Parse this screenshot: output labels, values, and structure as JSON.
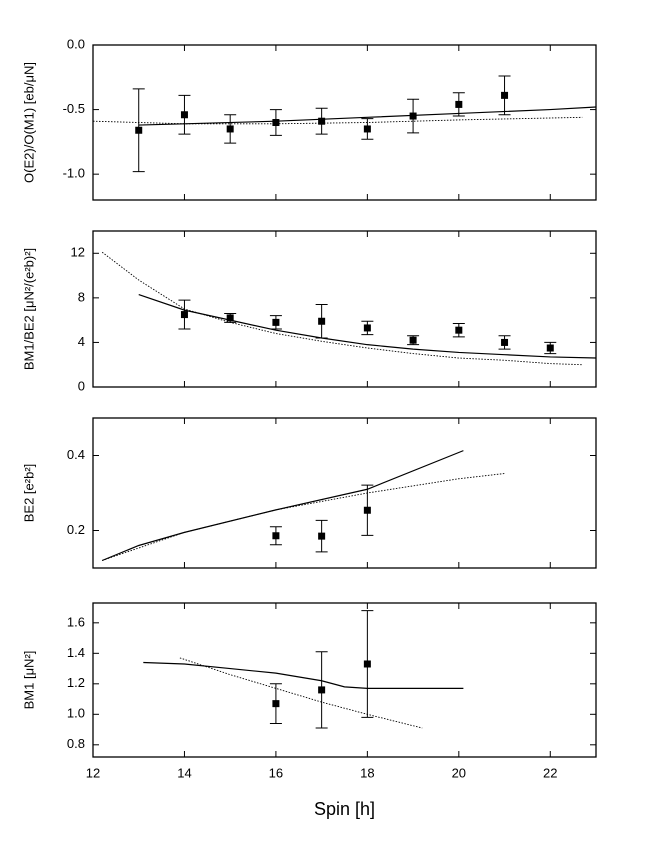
{
  "chart_data": [
    {
      "type": "line",
      "ylabel": "O(E2)/O(M1) [eb/μN]",
      "xlim": [
        12,
        23
      ],
      "xticks": [
        12,
        14,
        16,
        18,
        20,
        22
      ],
      "ylim": [
        -1.2,
        0.0
      ],
      "yticks": [
        {
          "value": 0.0,
          "label": "0.0"
        },
        {
          "value": -0.5,
          "label": "-0.5"
        },
        {
          "value": -1.0,
          "label": "-1.0"
        }
      ],
      "series": [
        {
          "color": "#000000",
          "marker": "square",
          "x": [
            13,
            14,
            15,
            16,
            17,
            18,
            19,
            20,
            21
          ],
          "values": [
            -0.66,
            -0.54,
            -0.65,
            -0.6,
            -0.59,
            -0.65,
            -0.55,
            -0.46,
            -0.39
          ],
          "errors": [
            0.32,
            0.15,
            0.11,
            0.1,
            0.1,
            0.08,
            0.13,
            0.09,
            0.15
          ]
        },
        {
          "color": "#000000",
          "dash": false,
          "x": [
            13,
            14,
            16,
            18,
            20,
            22,
            23
          ],
          "values": [
            -0.62,
            -0.61,
            -0.59,
            -0.56,
            -0.53,
            -0.5,
            -0.48
          ]
        },
        {
          "color": "#000000",
          "dash": true,
          "x": [
            12,
            14,
            16,
            18,
            20,
            22.7
          ],
          "values": [
            -0.59,
            -0.61,
            -0.61,
            -0.6,
            -0.58,
            -0.56
          ]
        }
      ]
    },
    {
      "type": "line",
      "ylabel": "BM1/BE2 [μN²/(e²b)²]",
      "xlim": [
        12,
        23
      ],
      "xticks": [
        12,
        14,
        16,
        18,
        20,
        22
      ],
      "ylim": [
        0,
        14
      ],
      "yticks": [
        0,
        4,
        8,
        12
      ],
      "series": [
        {
          "color": "#000000",
          "marker": "square",
          "x": [
            14,
            15,
            16,
            17,
            18,
            19,
            20,
            21,
            22
          ],
          "values": [
            6.5,
            6.2,
            5.8,
            5.9,
            5.3,
            4.2,
            5.1,
            4.0,
            3.5
          ],
          "errors": [
            1.3,
            0.4,
            0.6,
            1.5,
            0.6,
            0.4,
            0.6,
            0.6,
            0.5
          ]
        },
        {
          "color": "#000000",
          "dash": false,
          "x": [
            13,
            14,
            15,
            16,
            17,
            18,
            19,
            20,
            21,
            22,
            23
          ],
          "values": [
            8.3,
            6.9,
            6.0,
            5.1,
            4.4,
            3.8,
            3.4,
            3.1,
            2.9,
            2.7,
            2.6
          ]
        },
        {
          "color": "#000000",
          "dash": true,
          "x": [
            12.2,
            13,
            14,
            15,
            16,
            17,
            18,
            19,
            20,
            21,
            22,
            22.7
          ],
          "values": [
            12.1,
            9.6,
            7.0,
            5.8,
            4.8,
            4.1,
            3.5,
            3.0,
            2.6,
            2.4,
            2.1,
            2.0
          ]
        }
      ]
    },
    {
      "type": "line",
      "ylabel": "BE2 [e²b²]",
      "xlim": [
        12,
        23
      ],
      "xticks": [
        12,
        14,
        16,
        18,
        20,
        22
      ],
      "ylim": [
        0.1,
        0.5
      ],
      "yticks": [
        0.2,
        0.4
      ],
      "series": [
        {
          "color": "#000000",
          "marker": "square",
          "x": [
            16,
            17,
            18
          ],
          "values": [
            0.186,
            0.185,
            0.254
          ],
          "errors": [
            0.024,
            0.042,
            0.067
          ]
        },
        {
          "color": "#000000",
          "dash": false,
          "x": [
            12.2,
            13,
            14,
            16,
            18,
            20.1
          ],
          "values": [
            0.12,
            0.16,
            0.195,
            0.255,
            0.31,
            0.413
          ]
        },
        {
          "color": "#000000",
          "dash": true,
          "x": [
            12.2,
            14,
            16,
            18,
            20,
            21
          ],
          "values": [
            0.12,
            0.195,
            0.255,
            0.3,
            0.338,
            0.352
          ]
        }
      ]
    },
    {
      "type": "line",
      "ylabel": "BM1 [μN²]",
      "xlabel": "Spin [h]",
      "xlim": [
        12,
        23
      ],
      "xticks": [
        12,
        14,
        16,
        18,
        20,
        22
      ],
      "ylim": [
        0.72,
        1.73
      ],
      "yticks": [
        {
          "value": 0.8,
          "label": "0.8"
        },
        {
          "value": 1.0,
          "label": "1.0"
        },
        {
          "value": 1.2,
          "label": "1.2"
        },
        {
          "value": 1.4,
          "label": "1.4"
        },
        {
          "value": 1.6,
          "label": "1.6"
        }
      ],
      "series": [
        {
          "color": "#000000",
          "marker": "square",
          "x": [
            16,
            17,
            18
          ],
          "values": [
            1.07,
            1.16,
            1.33
          ],
          "errors": [
            0.13,
            0.25,
            0.35
          ]
        },
        {
          "color": "#000000",
          "dash": false,
          "x": [
            13.1,
            14,
            15,
            16,
            17,
            17.5,
            18,
            19,
            20.1
          ],
          "values": [
            1.34,
            1.33,
            1.3,
            1.27,
            1.22,
            1.18,
            1.17,
            1.17,
            1.17
          ]
        },
        {
          "color": "#000000",
          "dash": true,
          "x": [
            13.9,
            15,
            16,
            17,
            18,
            19.2
          ],
          "values": [
            1.37,
            1.26,
            1.17,
            1.08,
            1.0,
            0.91
          ]
        }
      ]
    }
  ]
}
